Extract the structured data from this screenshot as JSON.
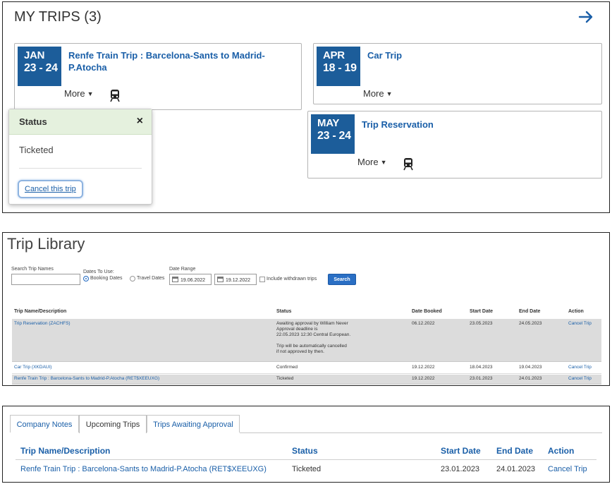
{
  "my_trips": {
    "title": "MY TRIPS (3)",
    "arrow_icon": "arrow-right-icon",
    "cards": [
      {
        "month": "JAN",
        "days": "23 - 24",
        "title": "Renfe Train Trip : Barcelona-Sants to Madrid-P.Atocha",
        "more": "More"
      },
      {
        "month": "APR",
        "days": "18 - 19",
        "title": "Car Trip",
        "more": "More"
      },
      {
        "month": "MAY",
        "days": "23 - 24",
        "title": "Trip Reservation",
        "more": "More"
      }
    ],
    "popover": {
      "heading": "Status",
      "close": "×",
      "value": "Ticketed",
      "cancel": "Cancel this trip"
    }
  },
  "library": {
    "title": "Trip Library",
    "search_label": "Search Trip Names",
    "dates_to_use_label": "Dates To Use:",
    "booking_dates": "Booking Dates",
    "travel_dates": "Travel Dates",
    "date_range_label": "Date Range",
    "date_from": "19.06.2022",
    "date_to": "19.12.2022",
    "include_withdrawn": "Include withdrawn trips",
    "search_button": "Search",
    "columns": [
      "Trip Name/Description",
      "Status",
      "Date Booked",
      "Start Date",
      "End Date",
      "Action"
    ],
    "rows": [
      {
        "name": "Trip Reservation (ZACHFS)",
        "status_lines": [
          "Awaiting approval by William Never",
          "Approval deadline is",
          "22.05.2023 12:30 Central European.",
          "",
          "Trip will be automatically cancelled",
          "if not approved by then."
        ],
        "booked": "06.12.2022",
        "start": "23.05.2023",
        "end": "24.05.2023",
        "action": "Cancel Trip"
      },
      {
        "name": "Car Trip (XKDAUI)",
        "status_lines": [
          "Confirmed"
        ],
        "booked": "19.12.2022",
        "start": "18.04.2023",
        "end": "19.04.2023",
        "action": "Cancel Trip"
      },
      {
        "name": "Renfe Train Trip : Barcelona-Sants to Madrid-P.Atocha (RET$XEEUXG)",
        "status_lines": [
          "Ticketed"
        ],
        "booked": "19.12.2022",
        "start": "23.01.2023",
        "end": "24.01.2023",
        "action": "Cancel Trip"
      }
    ]
  },
  "upcoming": {
    "tabs": [
      "Company Notes",
      "Upcoming Trips",
      "Trips Awaiting Approval"
    ],
    "active_tab": "Upcoming Trips",
    "columns": [
      "Trip Name/Description",
      "Status",
      "Start Date",
      "End Date",
      "Action"
    ],
    "row": {
      "name": "Renfe Train Trip : Barcelona-Sants to Madrid-P.Atocha (RET$XEEUXG)",
      "status": "Ticketed",
      "start": "23.01.2023",
      "end": "24.01.2023",
      "action": "Cancel Trip"
    }
  },
  "colors": {
    "date_box": "#1c5d9a",
    "link": "#1a5fa8",
    "status_header": "#e5f1de",
    "search_button": "#2a6fc4"
  }
}
